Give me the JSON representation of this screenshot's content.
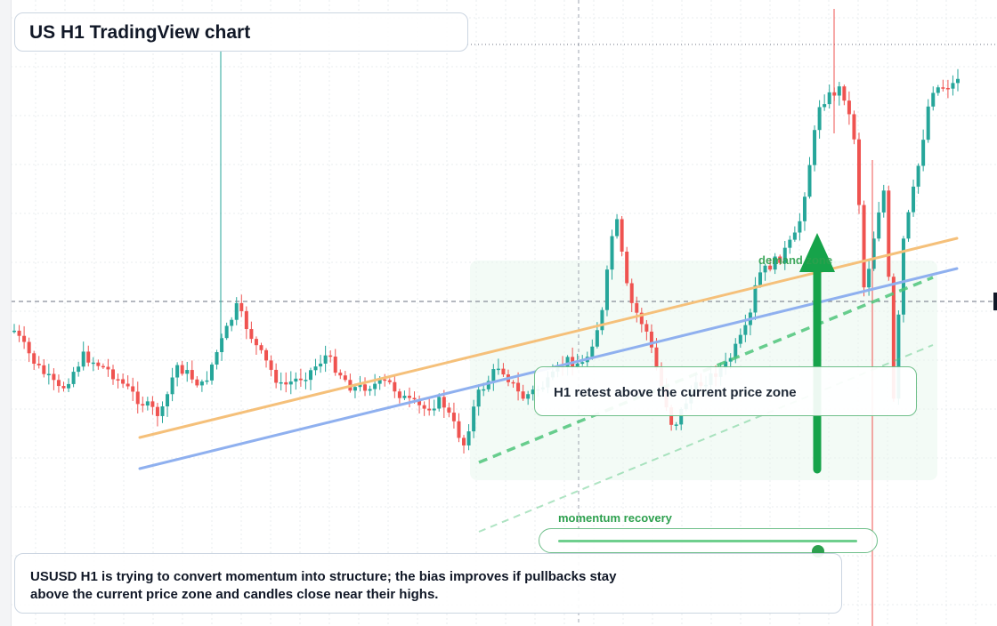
{
  "header": {
    "title": "US H1 TradingView chart"
  },
  "annotations": {
    "zone_label": "demand zone",
    "retest_label": "H1 retest above the current price zone",
    "momentum_label": "momentum recovery",
    "momentum_level": 0.87,
    "note": "USUSD H1 is trying to convert momentum into structure; the bias improves if pullbacks stay above the current price zone and candles close near their highs."
  },
  "colors": {
    "up": "#26a69a",
    "down": "#ef5350",
    "accent_green": "#16a34a",
    "orange_line": "#f5c07a",
    "blue_line": "#8fb0ef"
  },
  "chart_data": {
    "type": "candlestick",
    "title": "US H1 TradingView chart",
    "timeframe": "H1",
    "xlabel": "",
    "ylabel": "",
    "grid": true,
    "seed": 7,
    "candle_count": 192
  }
}
